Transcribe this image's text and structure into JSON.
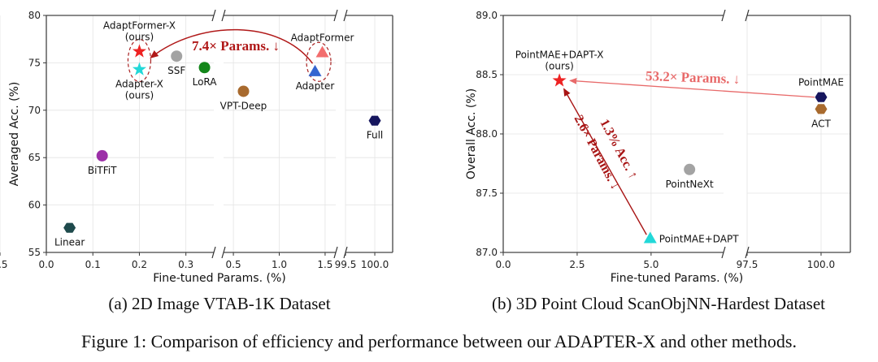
{
  "captions": {
    "a": "(a) 2D Image VTAB-1K Dataset",
    "b": "(b) 3D Point Cloud ScanObjNN-Hardest Dataset",
    "figure": "Figure 1: Comparison of efficiency and performance between our ADAPTER-X and other methods."
  },
  "chart_data": [
    {
      "type": "scatter",
      "xlabel": "Fine-tuned Params. (%)",
      "ylabel": "Averaged Acc. (%)",
      "ylim": [
        55,
        80
      ],
      "yticks": [
        55,
        60,
        65,
        70,
        75,
        80
      ],
      "x_broken_axis": true,
      "x_segments": [
        {
          "range": [
            0,
            0.36
          ],
          "ticks": [
            0.0,
            0.1,
            0.2,
            0.3
          ]
        },
        {
          "range": [
            0.393,
            1.616
          ],
          "ticks": [
            0.5,
            1.0,
            1.5
          ]
        },
        {
          "range": [
            99.5,
            100.305
          ],
          "ticks": [
            99.5,
            100.0
          ]
        }
      ],
      "grid": true,
      "points": [
        {
          "label": "Linear",
          "x": 0.05,
          "y": 57.6,
          "marker": "hexagon",
          "color": "#1e4a4c",
          "label_pos": "below"
        },
        {
          "label": "BiTFiT",
          "x": 0.12,
          "y": 65.2,
          "marker": "circle",
          "color": "#9c2fa8",
          "label_pos": "below"
        },
        {
          "label": "AdaptFormer-X\n(ours)",
          "x": 0.2,
          "y": 76.2,
          "marker": "star",
          "color": "#ee2222",
          "label_pos": "above"
        },
        {
          "label": "Adapter-X\n(ours)",
          "x": 0.2,
          "y": 74.3,
          "marker": "star",
          "color": "#22d8d8",
          "label_pos": "below"
        },
        {
          "label": "SSF",
          "x": 0.28,
          "y": 75.7,
          "marker": "circle",
          "color": "#a3a3a3",
          "label_pos": "below"
        },
        {
          "label": "LoRA",
          "x": 0.34,
          "y": 74.5,
          "marker": "circle",
          "color": "#13861a",
          "label_pos": "below"
        },
        {
          "label": "VPT-Deep",
          "x": 0.61,
          "y": 72.0,
          "marker": "circle",
          "color": "#a86a2e",
          "label_pos": "below"
        },
        {
          "label": "Adapter",
          "x": 1.39,
          "y": 74.1,
          "marker": "triangle",
          "color": "#3465d0",
          "label_pos": "below"
        },
        {
          "label": "AdaptFormer",
          "x": 1.47,
          "y": 76.1,
          "marker": "triangle",
          "color": "#f26d6d",
          "label_pos": "above"
        },
        {
          "label": "Full",
          "x": 100.0,
          "y": 68.9,
          "marker": "hexagon",
          "color": "#16165e",
          "label_pos": "below"
        }
      ],
      "annotations": [
        {
          "text": "7.4× Params. ↓",
          "color": "#b01818",
          "from": [
            1.39,
            75.1
          ],
          "to": [
            0.2,
            75.2
          ],
          "style": "curved-arrow"
        }
      ]
    },
    {
      "type": "scatter",
      "xlabel": "Fine-tuned Params. (%)",
      "ylabel": "Overall Acc. (%)",
      "ylim": [
        87.0,
        89.0
      ],
      "yticks": [
        87.0,
        87.5,
        88.0,
        88.5,
        89.0
      ],
      "x_broken_axis": true,
      "x_segments": [
        {
          "range": [
            0,
            7.45
          ],
          "ticks": [
            0.0,
            2.5,
            5.0,
            7.5
          ]
        },
        {
          "range": [
            97.5,
            100.99
          ],
          "ticks": [
            97.5,
            100.0
          ]
        }
      ],
      "grid": true,
      "points": [
        {
          "label": "PointMAE+DAPT-X\n(ours)",
          "x": 1.9,
          "y": 88.45,
          "marker": "star",
          "color": "#ee2222",
          "label_pos": "above"
        },
        {
          "label": "PointMAE+DAPT",
          "x": 4.97,
          "y": 87.12,
          "marker": "triangle",
          "color": "#22d8d8",
          "label_pos": "right"
        },
        {
          "label": "PointNeXt",
          "x": 6.3,
          "y": 87.7,
          "marker": "circle",
          "color": "#a3a3a3",
          "label_pos": "below"
        },
        {
          "label": "PointMAE",
          "x": 100.0,
          "y": 88.31,
          "marker": "hexagon",
          "color": "#16165e",
          "label_pos": "above"
        },
        {
          "label": "ACT",
          "x": 100.0,
          "y": 88.21,
          "marker": "hexagon",
          "color": "#a86a2e",
          "label_pos": "below"
        }
      ],
      "annotations": [
        {
          "text": "53.2× Params. ↓",
          "color": "#e86a6a",
          "from": [
            100.0,
            88.31
          ],
          "to": [
            2.1,
            88.45
          ],
          "style": "arrow"
        },
        {
          "text": "2.6× Params. ↓",
          "color": "#a81414",
          "from": [
            4.9,
            87.15
          ],
          "to": [
            2.0,
            88.4
          ],
          "style": "arrow"
        },
        {
          "text": "1.3% Acc. ↑",
          "color": "#a81414",
          "style": "label"
        }
      ]
    }
  ]
}
